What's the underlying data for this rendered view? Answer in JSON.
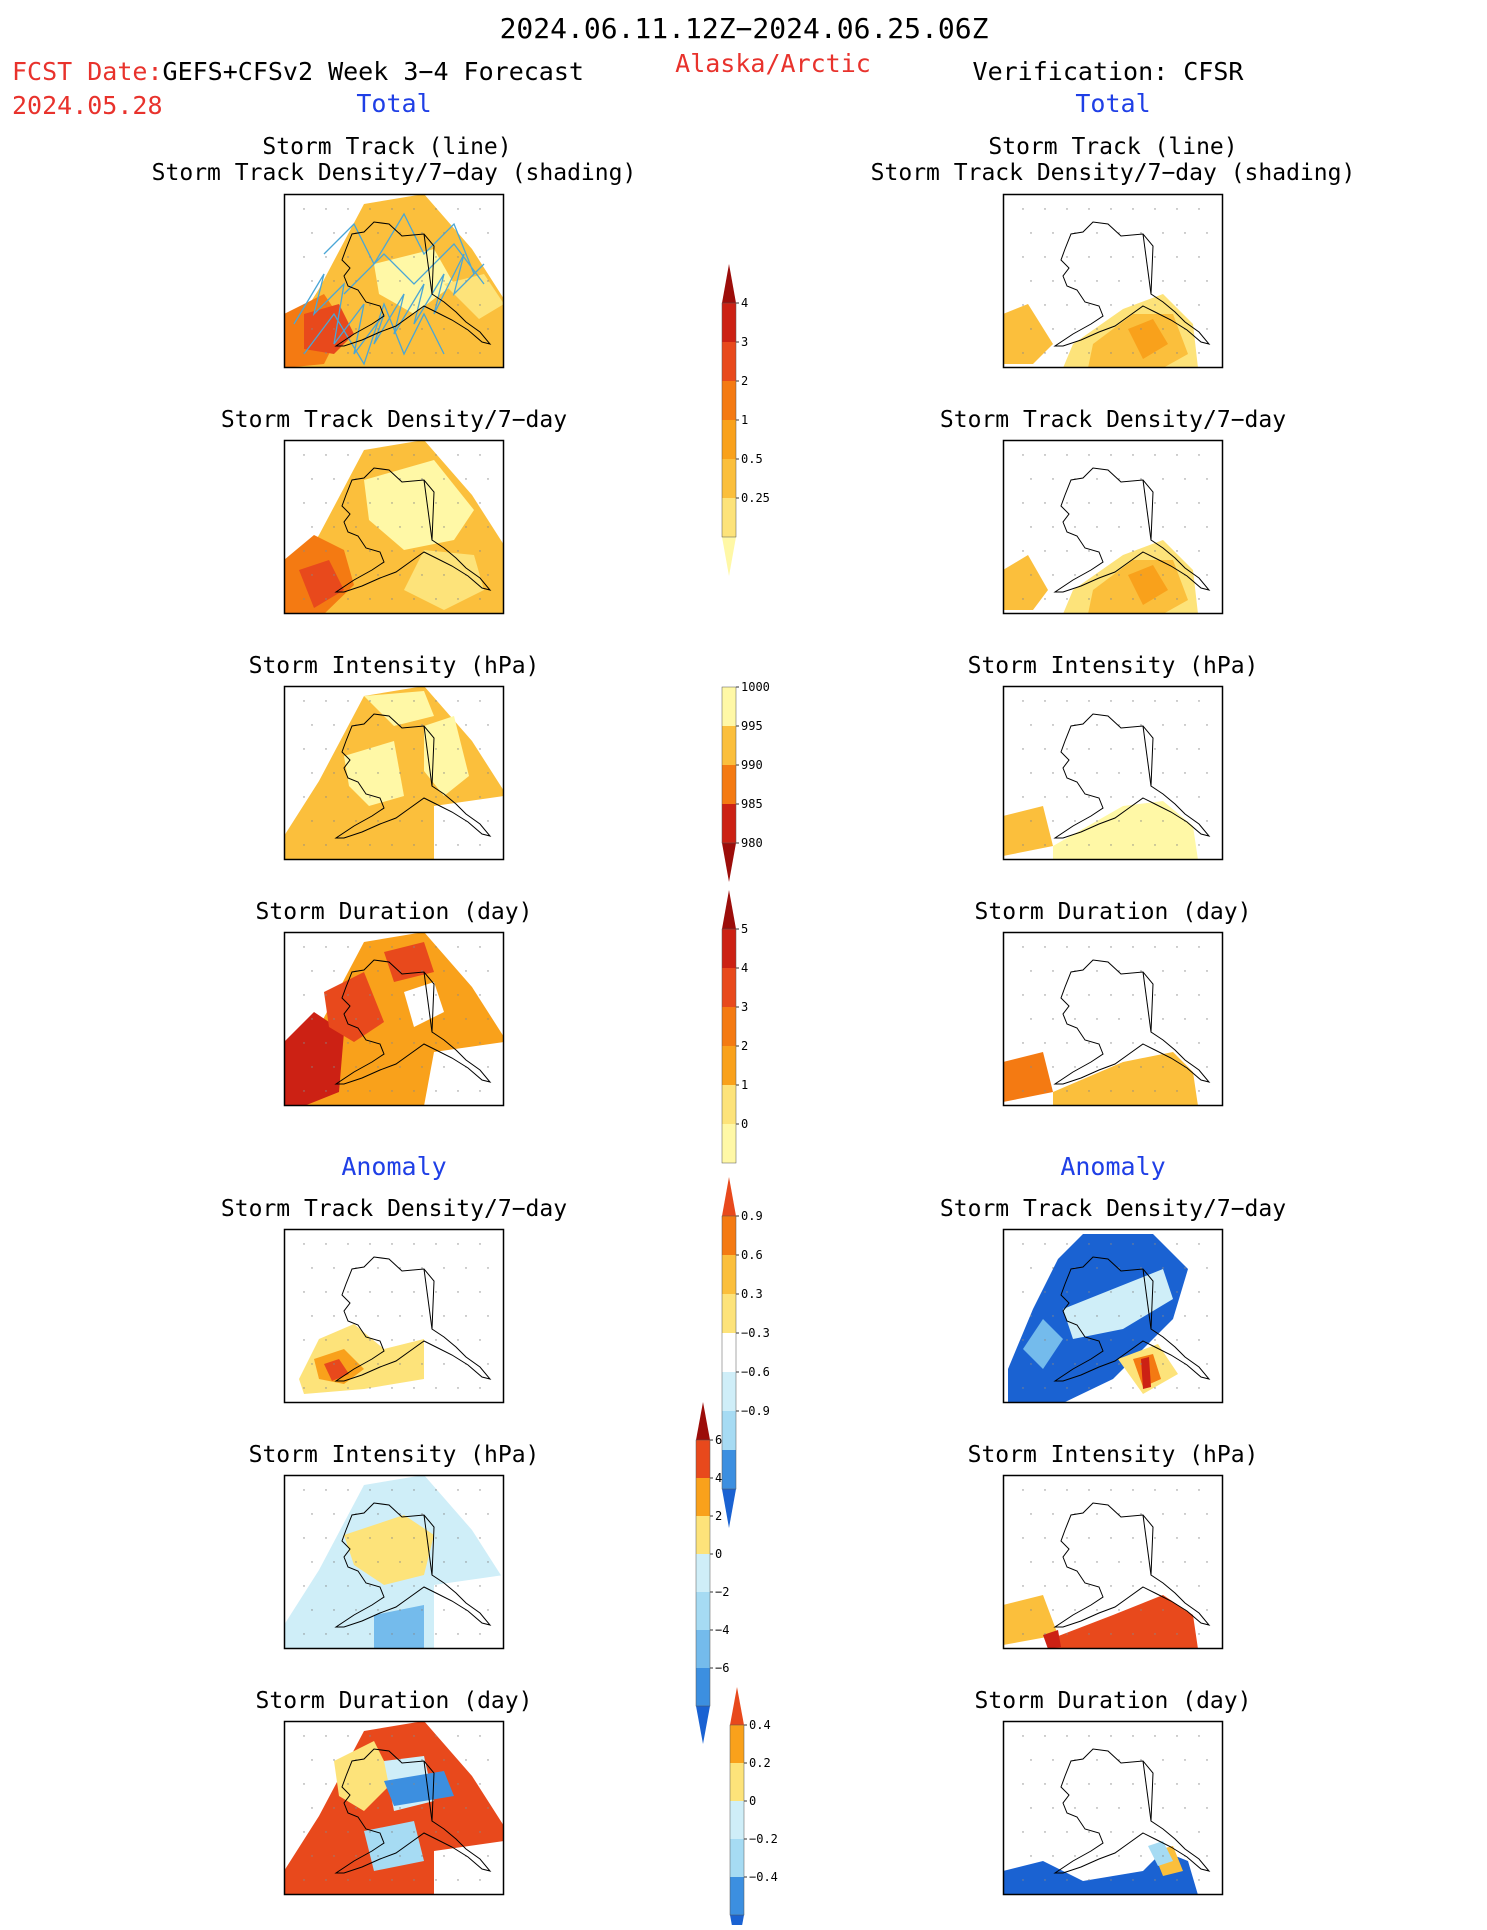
{
  "header": {
    "date_range": "2024.06.11.12Z−2024.06.25.06Z",
    "fcst_prefix": "FCST Date:",
    "fcst_model": "GEFS+CFSv2 Week 3−4 Forecast",
    "fcst_date": "2024.05.28",
    "region": "Alaska/Arctic",
    "verification": "Verification: CFSR",
    "total_left": "Total",
    "total_right": "Total"
  },
  "sections": {
    "anomaly_left": "Anomaly",
    "anomaly_right": "Anomaly"
  },
  "panel_titles": {
    "track_line": "Storm Track (line)",
    "track_shading": "Storm Track Density/7−day (shading)",
    "track_density": "Storm Track Density/7−day",
    "intensity": "Storm Intensity (hPa)",
    "duration": "Storm Duration (day)"
  },
  "colorbars": {
    "density_total": [
      "0.25",
      "0.5",
      "1",
      "2",
      "3",
      "4"
    ],
    "intensity_total": [
      "1000",
      "995",
      "990",
      "985",
      "980"
    ],
    "duration_total": [
      "0",
      "1",
      "2",
      "3",
      "4",
      "5"
    ],
    "density_anomaly": [
      "0.9",
      "0.6",
      "0.3",
      "−0.3",
      "−0.6",
      "−0.9"
    ],
    "intensity_anomaly": [
      "6",
      "4",
      "2",
      "0",
      "−2",
      "−4",
      "−6"
    ],
    "duration_anomaly": [
      "0.4",
      "0.2",
      "0",
      "−0.2",
      "−0.4"
    ]
  },
  "colors": {
    "title_red": "#e8322c",
    "title_blue": "#1f3fe6",
    "warm": [
      "#fff8a6",
      "#fde37a",
      "#fbbf3c",
      "#f9a11b",
      "#f47a12",
      "#e8491c",
      "#cc2114",
      "#9c0d0a"
    ],
    "cool": [
      "#cfeef8",
      "#a6dbf3",
      "#74bbec",
      "#3c8fe0",
      "#1a62d2",
      "#0f47b4"
    ]
  }
}
